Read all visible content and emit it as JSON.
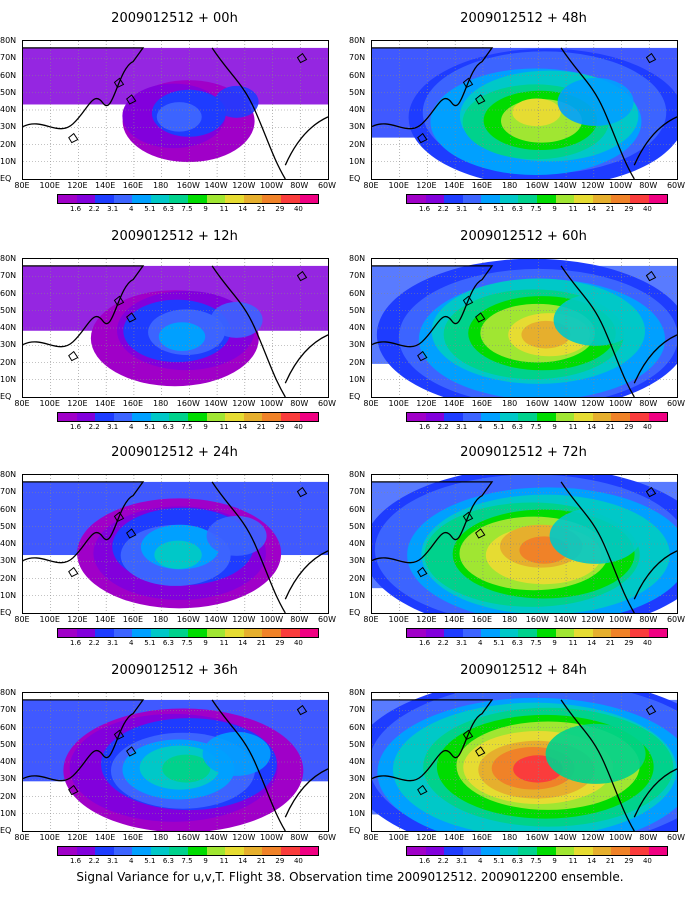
{
  "panels": [
    {
      "title": "2009012512 + 00h",
      "intensity": 1,
      "col": 0,
      "row": 0
    },
    {
      "title": "2009012512 + 12h",
      "intensity": 2,
      "col": 0,
      "row": 1
    },
    {
      "title": "2009012512 + 24h",
      "intensity": 3,
      "col": 0,
      "row": 2
    },
    {
      "title": "2009012512 + 36h",
      "intensity": 4,
      "col": 0,
      "row": 3
    },
    {
      "title": "2009012512 + 48h",
      "intensity": 5,
      "col": 1,
      "row": 0
    },
    {
      "title": "2009012512 + 60h",
      "intensity": 6,
      "col": 1,
      "row": 1
    },
    {
      "title": "2009012512 + 72h",
      "intensity": 7,
      "col": 1,
      "row": 2
    },
    {
      "title": "2009012512 + 84h",
      "intensity": 8,
      "col": 1,
      "row": 3
    }
  ],
  "lat_labels": [
    "80N",
    "70N",
    "60N",
    "50N",
    "40N",
    "30N",
    "20N",
    "10N",
    "EQ"
  ],
  "lon_labels": [
    "80E",
    "100E",
    "120E",
    "140E",
    "160E",
    "180",
    "160W",
    "140W",
    "120W",
    "100W",
    "80W",
    "60W"
  ],
  "colorbar": {
    "labels": [
      "1.6",
      "2.2",
      "3.1",
      "4",
      "5.1",
      "6.3",
      "7.5",
      "9",
      "11",
      "14",
      "21",
      "29",
      "40"
    ],
    "colors": [
      "#a000c8",
      "#8200dc",
      "#1e3cff",
      "#3c64ff",
      "#00a0ff",
      "#00c8c8",
      "#00d28c",
      "#00dc00",
      "#a0e632",
      "#e6dc32",
      "#e6af2d",
      "#f08228",
      "#fa3c3c",
      "#f00082"
    ]
  },
  "caption": "Signal Variance for u,v,T. Flight 38. Observation time 2009012512. 2009012200 ensemble."
}
